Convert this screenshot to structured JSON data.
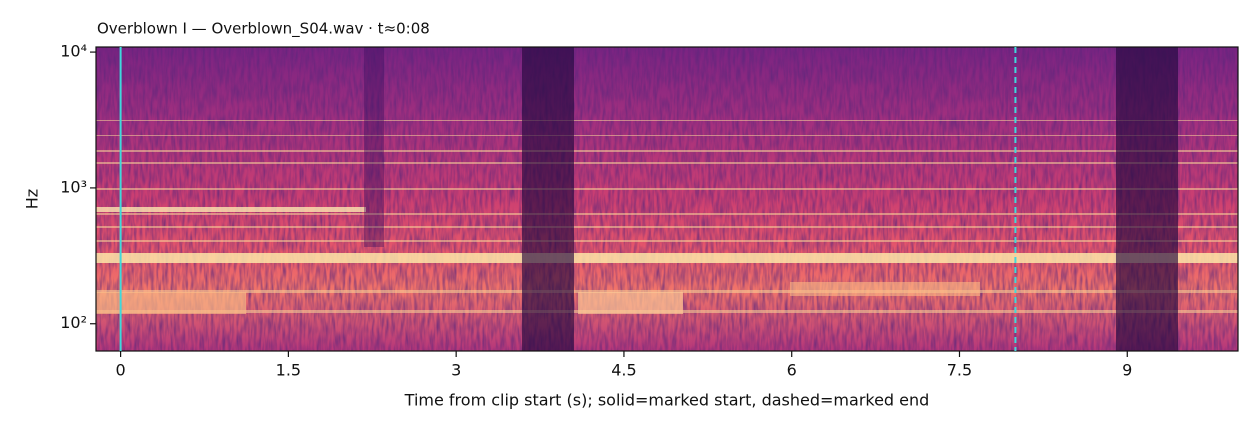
{
  "chart_data": {
    "type": "spectrogram",
    "title": "Overblown I  —  Overblown_S04.wav · t≈0:08",
    "x_label": "Time from clip start (s); solid=marked start, dashed=marked end",
    "y_label": "Hz",
    "xlim": [
      -0.22,
      9.99
    ],
    "xticks": [
      0,
      1.5,
      3,
      4.5,
      6,
      7.5,
      9
    ],
    "ylim": [
      63,
      10900
    ],
    "y_scale": "log",
    "yticks": [
      {
        "value": 100,
        "label": "10²"
      },
      {
        "value": 1000,
        "label": "10³"
      },
      {
        "value": 10000,
        "label": "10⁴"
      }
    ],
    "colormap": "magma",
    "markers": [
      {
        "x": 0,
        "style": "solid",
        "color": "#3fd9dc"
      },
      {
        "x": 8,
        "style": "dashed",
        "color": "#3fd9dc"
      }
    ]
  }
}
